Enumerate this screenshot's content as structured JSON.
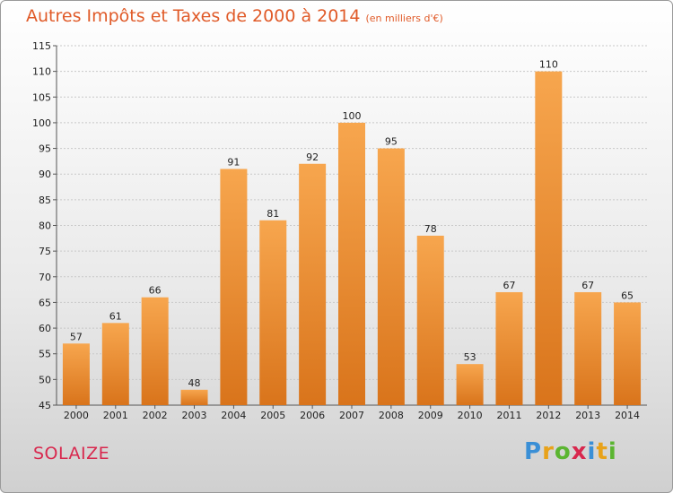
{
  "chart_data": {
    "type": "bar",
    "title": "Autres Impôts et Taxes de 2000 à 2014",
    "subtitle": "(en milliers d'€)",
    "categories": [
      "2000",
      "2001",
      "2002",
      "2003",
      "2004",
      "2005",
      "2006",
      "2007",
      "2008",
      "2009",
      "2010",
      "2011",
      "2012",
      "2013",
      "2014"
    ],
    "values": [
      57,
      61,
      66,
      48,
      91,
      81,
      92,
      100,
      95,
      78,
      53,
      67,
      110,
      67,
      65
    ],
    "ylim": [
      45,
      115
    ],
    "yticks": [
      45,
      50,
      55,
      60,
      65,
      70,
      75,
      80,
      85,
      90,
      95,
      100,
      105,
      110,
      115
    ],
    "grid": true,
    "bar_color": "#f08a2a"
  },
  "footer": {
    "city": "SOLAIZE",
    "logo_letters": [
      "P",
      "r",
      "o",
      "x",
      "i",
      "t",
      "i"
    ],
    "logo_colors": [
      "#3a8fd6",
      "#e8a21a",
      "#5bb531",
      "#d8284e",
      "#3a8fd6",
      "#e8a21a",
      "#5bb531"
    ]
  }
}
